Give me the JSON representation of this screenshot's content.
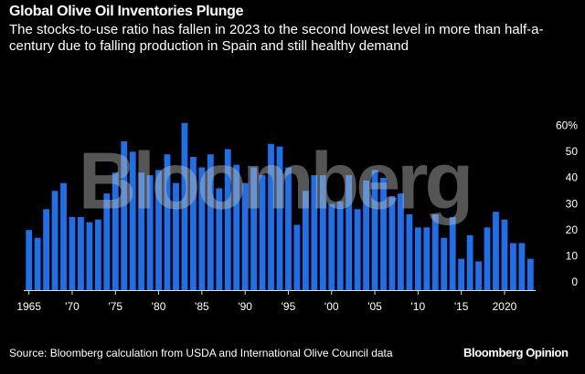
{
  "chart_data": {
    "type": "bar",
    "title": "Global Olive Oil Inventories Plunge",
    "subtitle": "The stocks-to-use ratio has fallen in 2023 to the second lowest level in more than half-a-century due to falling production in Spain and still healthy demand",
    "source": "Source: Bloomberg calculation from USDA and International Olive Council data",
    "brand": "Bloomberg Opinion",
    "watermark": "Bloomberg",
    "color": "#1e6fe8",
    "x": [
      1965,
      1966,
      1967,
      1968,
      1969,
      1970,
      1971,
      1972,
      1973,
      1974,
      1975,
      1976,
      1977,
      1978,
      1979,
      1980,
      1981,
      1982,
      1983,
      1984,
      1985,
      1986,
      1987,
      1988,
      1989,
      1990,
      1991,
      1992,
      1993,
      1994,
      1995,
      1996,
      1997,
      1998,
      1999,
      2000,
      2001,
      2002,
      2003,
      2004,
      2005,
      2006,
      2007,
      2008,
      2009,
      2010,
      2011,
      2012,
      2013,
      2014,
      2015,
      2016,
      2017,
      2018,
      2019,
      2020,
      2021,
      2022,
      2023
    ],
    "values": [
      23,
      20,
      31,
      38,
      41,
      28,
      28,
      26,
      27,
      37,
      45,
      57,
      53,
      45,
      44,
      46,
      52,
      41,
      64,
      51,
      47,
      52,
      39,
      54,
      48,
      41,
      47,
      44,
      56,
      55,
      47,
      25,
      38,
      44,
      44,
      33,
      34,
      44,
      31,
      42,
      46,
      43,
      36,
      37,
      29,
      24,
      24,
      29,
      20,
      28,
      12,
      21,
      11,
      24,
      30,
      27,
      18,
      18,
      12
    ],
    "xlim": [
      1964.4,
      2023.6
    ],
    "xticks": [
      1965,
      {
        "value": 1970,
        "label": "'70"
      },
      {
        "value": 1975,
        "label": "'75"
      },
      {
        "value": 1980,
        "label": "'80"
      },
      {
        "value": 1985,
        "label": "'85"
      },
      {
        "value": 1990,
        "label": "'90"
      },
      {
        "value": 1995,
        "label": "'95"
      },
      {
        "value": 2000,
        "label": "'00"
      },
      {
        "value": 2005,
        "label": "'05"
      },
      {
        "value": 2010,
        "label": "'10"
      },
      {
        "value": 2015,
        "label": "'15"
      },
      2020
    ],
    "ylim": [
      0,
      65
    ],
    "yticks": [
      0,
      10,
      20,
      30,
      40,
      50,
      {
        "value": 60,
        "label": "60%"
      }
    ]
  }
}
